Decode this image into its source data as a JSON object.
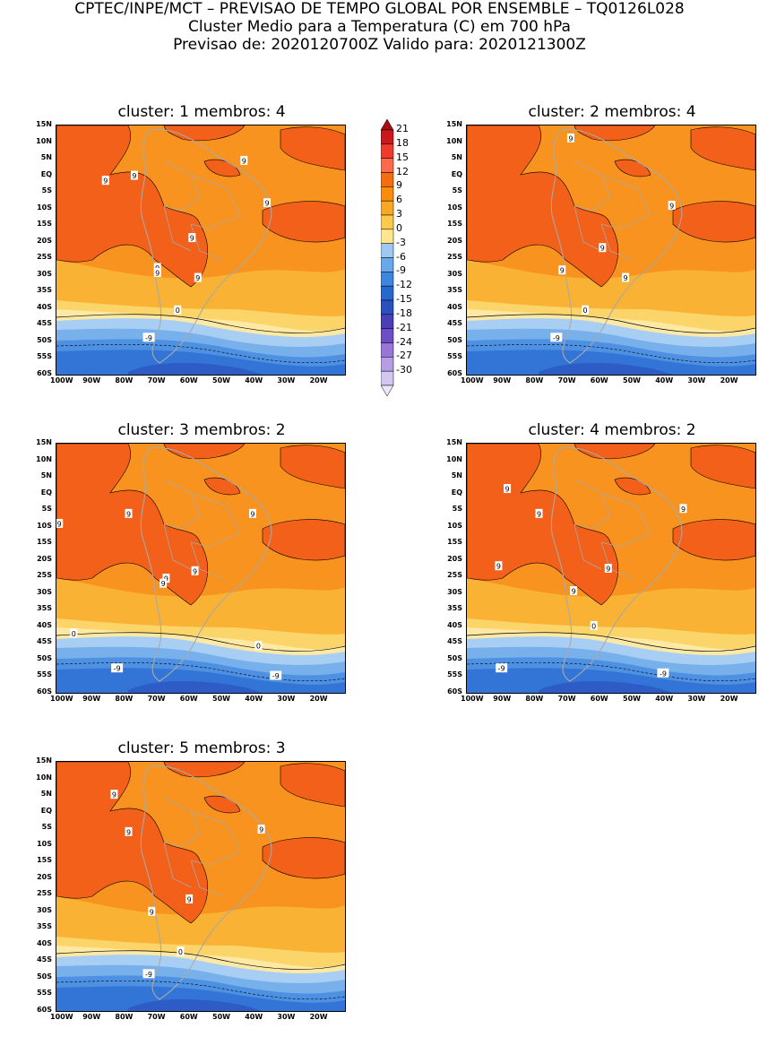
{
  "header": {
    "line1": "CPTEC/INPE/MCT – PREVISAO DE TEMPO GLOBAL POR ENSEMBLE – TQ0126L028",
    "line2": "Cluster Medio para a Temperatura (C) em 700 hPa",
    "line3": "Previsao de: 2020120700Z    Valido para: 2020121300Z"
  },
  "axes": {
    "lat_labels": [
      "15N",
      "10N",
      "5N",
      "EQ",
      "5S",
      "10S",
      "15S",
      "20S",
      "25S",
      "30S",
      "35S",
      "40S",
      "45S",
      "50S",
      "55S",
      "60S"
    ],
    "lon_labels": [
      "100W",
      "90W",
      "80W",
      "70W",
      "60W",
      "50W",
      "40W",
      "30W",
      "20W"
    ]
  },
  "colorbar": {
    "labels": [
      "21",
      "18",
      "15",
      "12",
      "9",
      "6",
      "3",
      "0",
      "-3",
      "-6",
      "-9",
      "-12",
      "-15",
      "-18",
      "-21",
      "-24",
      "-27",
      "-30"
    ],
    "colors": [
      "#a50f15",
      "#cb181d",
      "#ef3b2c",
      "#fb6a4a",
      "#f46d0e",
      "#fb8c0c",
      "#f8a825",
      "#fbc94c",
      "#fde68e",
      "#9ec7f2",
      "#6aa8ec",
      "#3e85e0",
      "#2668d0",
      "#2b51be",
      "#4a3fb4",
      "#6e4ec6",
      "#9776d8",
      "#b59ee4",
      "#d3c6f0",
      "#ece6f8"
    ]
  },
  "panels": [
    {
      "title": "cluster: 1   membros: 4",
      "labels": [
        "9",
        "9",
        "9",
        "9",
        "9",
        "9",
        "9",
        "9",
        "0",
        "-9"
      ]
    },
    {
      "title": "cluster: 2   membros: 4",
      "labels": [
        "9",
        "9",
        "9",
        "9",
        "9",
        "0",
        "-9"
      ]
    },
    {
      "title": "cluster: 3   membros: 2",
      "labels": [
        "9",
        "9",
        "9",
        "9",
        "9",
        "9",
        "0",
        "0",
        "-9",
        "-9"
      ]
    },
    {
      "title": "cluster: 4   membros: 2",
      "labels": [
        "9",
        "9",
        "9",
        "9",
        "9",
        "9",
        "0",
        "-9",
        "-9"
      ]
    },
    {
      "title": "cluster: 5   membros: 3",
      "labels": [
        "9",
        "9",
        "9",
        "9",
        "9",
        "0",
        "-9"
      ]
    }
  ]
}
